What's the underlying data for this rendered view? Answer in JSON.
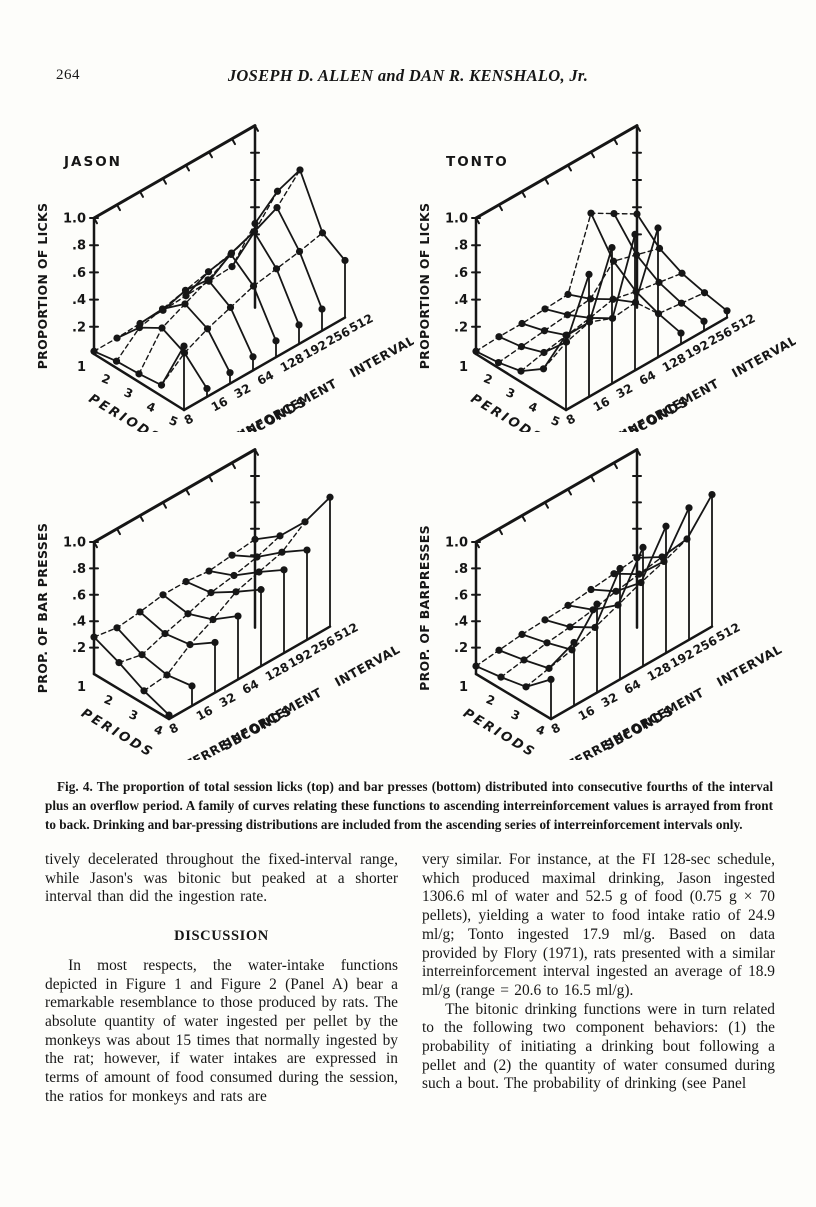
{
  "page": {
    "number": "264",
    "running_title": "JOSEPH D. ALLEN and DAN R. KENSHALO, Jr."
  },
  "figure": {
    "caption": "Fig. 4. The proportion of total session licks (top) and bar presses (bottom) distributed into consecutive fourths of the interval plus an overflow period. A family of curves relating these functions to ascending interreinforcement values is arrayed from front to back. Drinking and bar-pressing distributions are included from the ascending series of interreinforcement intervals only."
  },
  "chart_data": [
    {
      "type": "line",
      "projection": "3d-family-of-curves",
      "position": "top-left",
      "title": "JASON",
      "ylabel": "PROPORTION OF LICKS",
      "xlabel": "INTERREINFORCEMENT INTERVAL",
      "xlabel2": "SECONDS",
      "zlabel": "PERIODS",
      "ylim": [
        0,
        1.0
      ],
      "yticks": [
        "1.0",
        ".8",
        ".6",
        ".4",
        ".2"
      ],
      "periods": [
        "1",
        "2",
        "3",
        "4",
        "5"
      ],
      "categories": [
        "8",
        "16",
        "32",
        "64",
        "128",
        "192",
        "256",
        "512"
      ],
      "series": [
        {
          "name": "8",
          "values": [
            0.02,
            0.05,
            0.06,
            0.08,
            0.47
          ]
        },
        {
          "name": "16",
          "values": [
            0.02,
            0.2,
            0.3,
            0.22,
            0.06
          ]
        },
        {
          "name": "32",
          "values": [
            0.03,
            0.24,
            0.38,
            0.3,
            0.08
          ]
        },
        {
          "name": "64",
          "values": [
            0.03,
            0.28,
            0.46,
            0.36,
            0.1
          ]
        },
        {
          "name": "128",
          "values": [
            0.04,
            0.32,
            0.55,
            0.42,
            0.12
          ]
        },
        {
          "name": "192",
          "values": [
            0.05,
            0.36,
            0.62,
            0.45,
            0.14
          ]
        },
        {
          "name": "256",
          "values": [
            0.06,
            0.42,
            0.7,
            0.48,
            0.16
          ]
        },
        {
          "name": "512",
          "values": [
            0.28,
            0.62,
            0.88,
            0.52,
            0.42
          ]
        }
      ]
    },
    {
      "type": "line",
      "projection": "3d-family-of-curves",
      "position": "top-right",
      "title": "TONTO",
      "ylabel": "PROPORTION OF LICKS",
      "xlabel": "INTERREINFORCEMENT INTERVAL",
      "xlabel2": "SECONDS",
      "zlabel": "PERIODS",
      "ylim": [
        0,
        1.0
      ],
      "yticks": [
        "1.0",
        ".8",
        ".6",
        ".4",
        ".2"
      ],
      "periods": [
        "1",
        "2",
        "3",
        "4",
        "5"
      ],
      "categories": [
        "8",
        "16",
        "32",
        "64",
        "128",
        "192",
        "256",
        "512"
      ],
      "series": [
        {
          "name": "8",
          "values": [
            0.02,
            0.04,
            0.08,
            0.2,
            0.55
          ]
        },
        {
          "name": "16",
          "values": [
            0.03,
            0.06,
            0.12,
            0.3,
            0.9
          ]
        },
        {
          "name": "32",
          "values": [
            0.03,
            0.08,
            0.15,
            0.35,
            1.0
          ]
        },
        {
          "name": "64",
          "values": [
            0.04,
            0.1,
            0.18,
            0.28,
            1.0
          ]
        },
        {
          "name": "128",
          "values": [
            0.05,
            0.12,
            0.22,
            0.3,
            0.95
          ]
        },
        {
          "name": "192",
          "values": [
            0.55,
            0.3,
            0.18,
            0.12,
            0.08
          ]
        },
        {
          "name": "256",
          "values": [
            0.45,
            0.25,
            0.15,
            0.1,
            0.07
          ]
        },
        {
          "name": "512",
          "values": [
            0.35,
            0.2,
            0.12,
            0.08,
            0.05
          ]
        }
      ]
    },
    {
      "type": "line",
      "projection": "3d-family-of-curves",
      "position": "bottom-left",
      "title": "",
      "ylabel": "PROP. OF BAR PRESSES",
      "xlabel": "INTERREINFORCEMENT INTERVAL",
      "xlabel2": "SECONDS",
      "zlabel": "PERIODS",
      "ylim": [
        0,
        1.0
      ],
      "yticks": [
        "1.0",
        ".8",
        ".6",
        ".4",
        ".2"
      ],
      "periods": [
        "1",
        "2",
        "3",
        "4"
      ],
      "categories": [
        "8",
        "16",
        "32",
        "64",
        "128",
        "192",
        "256",
        "512"
      ],
      "series": [
        {
          "name": "8",
          "values": [
            0.28,
            0.2,
            0.1,
            0.03
          ]
        },
        {
          "name": "16",
          "values": [
            0.25,
            0.16,
            0.12,
            0.15
          ]
        },
        {
          "name": "32",
          "values": [
            0.27,
            0.22,
            0.25,
            0.38
          ]
        },
        {
          "name": "64",
          "values": [
            0.3,
            0.27,
            0.34,
            0.48
          ]
        },
        {
          "name": "128",
          "values": [
            0.3,
            0.33,
            0.45,
            0.58
          ]
        },
        {
          "name": "192",
          "values": [
            0.28,
            0.36,
            0.5,
            0.63
          ]
        },
        {
          "name": "256",
          "values": [
            0.3,
            0.4,
            0.55,
            0.68
          ]
        },
        {
          "name": "512",
          "values": [
            0.32,
            0.46,
            0.68,
            0.98
          ]
        }
      ]
    },
    {
      "type": "line",
      "projection": "3d-family-of-curves",
      "position": "bottom-right",
      "title": "",
      "ylabel": "PROP. OF BARPRESSES",
      "xlabel": "INTERREINFORCEMENT INTERVAL",
      "xlabel2": "SECONDS",
      "zlabel": "PERIODS",
      "ylim": [
        0,
        1.0
      ],
      "yticks": [
        "1.0",
        ".8",
        ".6",
        ".4",
        ".2"
      ],
      "periods": [
        "1",
        "2",
        "3",
        "4"
      ],
      "categories": [
        "8",
        "16",
        "32",
        "64",
        "128",
        "192",
        "256",
        "512"
      ],
      "series": [
        {
          "name": "8",
          "values": [
            0.06,
            0.09,
            0.13,
            0.3
          ]
        },
        {
          "name": "16",
          "values": [
            0.08,
            0.12,
            0.17,
            0.48
          ]
        },
        {
          "name": "32",
          "values": [
            0.1,
            0.15,
            0.21,
            0.67
          ]
        },
        {
          "name": "64",
          "values": [
            0.11,
            0.17,
            0.28,
            0.84
          ]
        },
        {
          "name": "128",
          "values": [
            0.12,
            0.2,
            0.35,
            0.9
          ]
        },
        {
          "name": "192",
          "values": [
            0.14,
            0.24,
            0.42,
            0.96
          ]
        },
        {
          "name": "256",
          "values": [
            0.16,
            0.27,
            0.48,
            1.0
          ]
        },
        {
          "name": "512",
          "values": [
            0.18,
            0.3,
            0.55,
            1.0
          ]
        }
      ]
    }
  ],
  "article": {
    "left_column": {
      "paragraph_continuation": "tively decelerated throughout the fixed-interval range, while Jason's was bitonic but peaked at a shorter interval than did the ingestion rate.",
      "heading": "DISCUSSION",
      "paragraph_1": "In most respects, the water-intake functions depicted in Figure 1 and Figure 2 (Panel A) bear a remarkable resemblance to those produced by rats. The absolute quantity of water ingested per pellet by the monkeys was about 15 times that normally ingested by the rat; however, if water intakes are expressed in terms of amount of food consumed during the session, the ratios for monkeys and rats are"
    },
    "right_column": {
      "paragraph_continuation": "very similar. For instance, at the FI 128-sec schedule, which produced maximal drinking, Jason ingested 1306.6 ml of water and 52.5 g of food (0.75 g × 70 pellets), yielding a water to food intake ratio of 24.9 ml/g; Tonto ingested 17.9 ml/g. Based on data provided by Flory (1971), rats presented with a similar interreinforcement interval ingested an average of 18.9 ml/g (range = 20.6 to 16.5 ml/g).",
      "paragraph_2": "The bitonic drinking functions were in turn related to the following two component behaviors: (1) the probability of initiating a drinking bout following a pellet and (2) the quantity of water consumed during such a bout. The probability of drinking (see Panel"
    }
  }
}
